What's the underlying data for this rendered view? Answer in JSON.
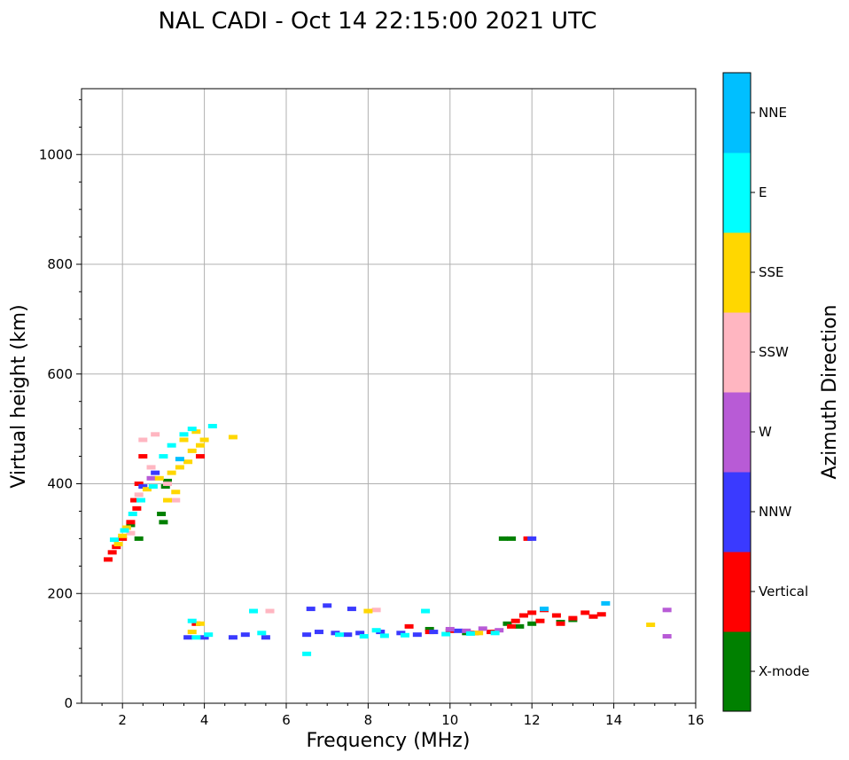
{
  "chart_data": {
    "type": "scatter",
    "title": "NAL CADI - Oct 14 22:15:00 2021 UTC",
    "xlabel": "Frequency (MHz)",
    "ylabel": "Virtual height (km)",
    "xlim": [
      1,
      16
    ],
    "ylim": [
      0,
      1120
    ],
    "xticks": [
      2,
      4,
      6,
      8,
      10,
      12,
      14,
      16
    ],
    "yticks": [
      0,
      200,
      400,
      600,
      800,
      1000
    ],
    "grid": true,
    "colorbar": {
      "title": "Azimuth Direction",
      "categories": [
        {
          "name": "X-mode",
          "color": "#008000"
        },
        {
          "name": "Vertical",
          "color": "#ff0000"
        },
        {
          "name": "NNW",
          "color": "#3a3aff"
        },
        {
          "name": "W",
          "color": "#b85bd6"
        },
        {
          "name": "SSW",
          "color": "#ffb6c1"
        },
        {
          "name": "SSE",
          "color": "#ffd700"
        },
        {
          "name": "E",
          "color": "#00ffff"
        },
        {
          "name": "NNE",
          "color": "#00bfff"
        }
      ]
    },
    "series": [
      {
        "name": "X-mode",
        "points": [
          [
            3.05,
            395
          ],
          [
            3.1,
            405
          ],
          [
            2.95,
            345
          ],
          [
            3.0,
            330
          ],
          [
            2.4,
            300
          ],
          [
            2.2,
            325
          ],
          [
            11.3,
            300
          ],
          [
            11.5,
            300
          ],
          [
            11.4,
            145
          ],
          [
            11.7,
            140
          ],
          [
            12.0,
            145
          ],
          [
            12.7,
            148
          ],
          [
            13.0,
            152
          ],
          [
            9.5,
            135
          ],
          [
            10.4,
            128
          ]
        ]
      },
      {
        "name": "Vertical",
        "points": [
          [
            1.65,
            262
          ],
          [
            1.75,
            275
          ],
          [
            1.85,
            285
          ],
          [
            2.0,
            300
          ],
          [
            2.2,
            330
          ],
          [
            2.35,
            355
          ],
          [
            2.4,
            400
          ],
          [
            2.5,
            450
          ],
          [
            2.3,
            370
          ],
          [
            3.9,
            450
          ],
          [
            3.8,
            145
          ],
          [
            11.9,
            300
          ],
          [
            11.5,
            140
          ],
          [
            11.6,
            150
          ],
          [
            11.8,
            160
          ],
          [
            12.0,
            165
          ],
          [
            12.3,
            170
          ],
          [
            12.6,
            160
          ],
          [
            12.7,
            145
          ],
          [
            12.2,
            150
          ],
          [
            13.0,
            155
          ],
          [
            13.3,
            165
          ],
          [
            13.7,
            162
          ],
          [
            13.5,
            158
          ],
          [
            9.0,
            140
          ],
          [
            9.5,
            130
          ],
          [
            10.0,
            132
          ],
          [
            10.6,
            128
          ],
          [
            11.0,
            130
          ]
        ]
      },
      {
        "name": "NNW",
        "points": [
          [
            3.6,
            120
          ],
          [
            4.0,
            120
          ],
          [
            4.7,
            120
          ],
          [
            5.0,
            125
          ],
          [
            5.5,
            120
          ],
          [
            6.5,
            125
          ],
          [
            6.8,
            130
          ],
          [
            7.2,
            128
          ],
          [
            7.5,
            125
          ],
          [
            7.8,
            128
          ],
          [
            8.3,
            130
          ],
          [
            8.8,
            128
          ],
          [
            9.2,
            125
          ],
          [
            9.6,
            130
          ],
          [
            10.2,
            132
          ],
          [
            6.6,
            172
          ],
          [
            7.0,
            178
          ],
          [
            7.6,
            172
          ],
          [
            12.0,
            300
          ],
          [
            2.5,
            395
          ],
          [
            2.8,
            420
          ]
        ]
      },
      {
        "name": "W",
        "points": [
          [
            10.0,
            135
          ],
          [
            10.4,
            132
          ],
          [
            10.8,
            136
          ],
          [
            11.2,
            133
          ],
          [
            15.3,
            170
          ],
          [
            15.3,
            122
          ],
          [
            2.7,
            410
          ]
        ]
      },
      {
        "name": "SSW",
        "points": [
          [
            2.2,
            310
          ],
          [
            2.4,
            380
          ],
          [
            2.5,
            480
          ],
          [
            2.7,
            430
          ],
          [
            2.8,
            490
          ],
          [
            3.1,
            400
          ],
          [
            3.3,
            370
          ],
          [
            8.2,
            170
          ],
          [
            5.6,
            168
          ]
        ]
      },
      {
        "name": "SSE",
        "points": [
          [
            1.9,
            290
          ],
          [
            2.0,
            305
          ],
          [
            2.1,
            320
          ],
          [
            2.6,
            390
          ],
          [
            2.9,
            410
          ],
          [
            3.2,
            420
          ],
          [
            3.4,
            430
          ],
          [
            3.6,
            440
          ],
          [
            3.7,
            460
          ],
          [
            3.9,
            470
          ],
          [
            3.5,
            480
          ],
          [
            3.8,
            495
          ],
          [
            4.0,
            480
          ],
          [
            4.7,
            485
          ],
          [
            3.3,
            385
          ],
          [
            3.1,
            370
          ],
          [
            8.0,
            168
          ],
          [
            14.9,
            143
          ],
          [
            3.9,
            145
          ],
          [
            3.7,
            130
          ],
          [
            10.7,
            128
          ]
        ]
      },
      {
        "name": "E",
        "points": [
          [
            1.8,
            298
          ],
          [
            2.05,
            315
          ],
          [
            2.25,
            345
          ],
          [
            2.45,
            370
          ],
          [
            2.75,
            395
          ],
          [
            3.0,
            450
          ],
          [
            3.2,
            470
          ],
          [
            3.5,
            490
          ],
          [
            3.7,
            500
          ],
          [
            4.2,
            505
          ],
          [
            3.7,
            150
          ],
          [
            3.8,
            120
          ],
          [
            4.1,
            125
          ],
          [
            5.2,
            168
          ],
          [
            5.4,
            128
          ],
          [
            6.5,
            90
          ],
          [
            7.3,
            125
          ],
          [
            7.9,
            122
          ],
          [
            8.4,
            123
          ],
          [
            8.9,
            124
          ],
          [
            9.4,
            168
          ],
          [
            9.9,
            126
          ],
          [
            10.5,
            127
          ],
          [
            11.1,
            128
          ],
          [
            8.2,
            133
          ]
        ]
      },
      {
        "name": "NNE",
        "points": [
          [
            13.8,
            182
          ],
          [
            12.3,
            172
          ],
          [
            3.4,
            445
          ]
        ]
      }
    ]
  }
}
